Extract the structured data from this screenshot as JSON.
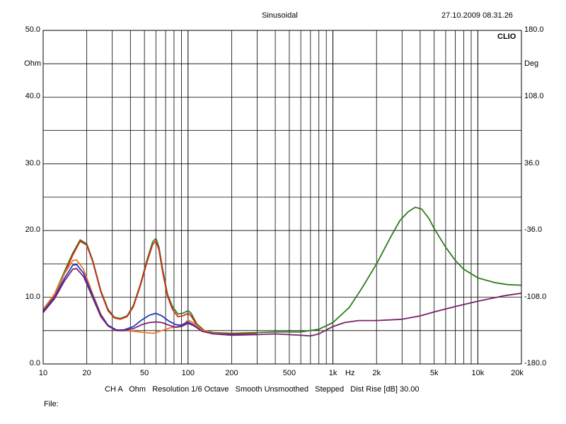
{
  "header": {
    "title": "Sinusoidal",
    "timestamp": "27.10.2009 08.31.26",
    "brand": "CLIO"
  },
  "footer": {
    "settings": "CH A   Ohm   Resolution 1/6 Octave   Smooth Unsmoothed   Stepped   Dist Rise [dB] 30.00",
    "file_label": "File:"
  },
  "chart_data": {
    "type": "line",
    "title": "Sinusoidal",
    "xlabel": "Hz",
    "ylabel_left": "Ohm",
    "ylabel_right": "Deg",
    "xscale": "log",
    "xlim": [
      10,
      20000
    ],
    "ylim": [
      0,
      50
    ],
    "ylim_right": [
      -180,
      180
    ],
    "grid": true,
    "x_ticks": [
      {
        "v": 10,
        "label": "10"
      },
      {
        "v": 20,
        "label": "20"
      },
      {
        "v": 50,
        "label": "50"
      },
      {
        "v": 100,
        "label": "100"
      },
      {
        "v": 200,
        "label": "200"
      },
      {
        "v": 500,
        "label": "500"
      },
      {
        "v": 1000,
        "label": "1k"
      },
      {
        "v": 2000,
        "label": "2k"
      },
      {
        "v": 5000,
        "label": "5k"
      },
      {
        "v": 10000,
        "label": "10k"
      },
      {
        "v": 20000,
        "label": "20k"
      }
    ],
    "y_ticks_left": [
      {
        "v": 50,
        "label": "50.0"
      },
      {
        "v": 40,
        "label": "40.0"
      },
      {
        "v": 30,
        "label": "30.0"
      },
      {
        "v": 20,
        "label": "20.0"
      },
      {
        "v": 10,
        "label": "10.0"
      },
      {
        "v": 0,
        "label": "0.0"
      }
    ],
    "y_ticks_right": [
      {
        "v": 50,
        "label": "180.0"
      },
      {
        "v": 40,
        "label": "108.0"
      },
      {
        "v": 30,
        "label": "36.0"
      },
      {
        "v": 20,
        "label": "-36.0"
      },
      {
        "v": 10,
        "label": "-108.0"
      },
      {
        "v": 0,
        "label": "-180.0"
      }
    ],
    "series": [
      {
        "color": "#2e7d1e",
        "points": [
          [
            10,
            8
          ],
          [
            12,
            10.5
          ],
          [
            14,
            13.8
          ],
          [
            16,
            16.6
          ],
          [
            18,
            18.6
          ],
          [
            20,
            18
          ],
          [
            22,
            15.5
          ],
          [
            25,
            11
          ],
          [
            28,
            8.2
          ],
          [
            31,
            7
          ],
          [
            34,
            6.8
          ],
          [
            38,
            7.2
          ],
          [
            42,
            8.8
          ],
          [
            47,
            12
          ],
          [
            52,
            15.5
          ],
          [
            57,
            18.3
          ],
          [
            60,
            18.8
          ],
          [
            63,
            17.5
          ],
          [
            67,
            14
          ],
          [
            72,
            10.5
          ],
          [
            78,
            8.6
          ],
          [
            85,
            7.5
          ],
          [
            92,
            7.6
          ],
          [
            100,
            8
          ],
          [
            105,
            7.6
          ],
          [
            115,
            6
          ],
          [
            130,
            5
          ],
          [
            150,
            4.7
          ],
          [
            200,
            4.6
          ],
          [
            300,
            4.7
          ],
          [
            400,
            4.8
          ],
          [
            600,
            4.8
          ],
          [
            800,
            5.2
          ],
          [
            1000,
            6.2
          ],
          [
            1300,
            8.5
          ],
          [
            1600,
            11.5
          ],
          [
            2000,
            15
          ],
          [
            2500,
            19
          ],
          [
            2900,
            21.5
          ],
          [
            3300,
            22.8
          ],
          [
            3700,
            23.5
          ],
          [
            4100,
            23.2
          ],
          [
            4600,
            21.8
          ],
          [
            5000,
            20.3
          ],
          [
            6000,
            17.5
          ],
          [
            7000,
            15.5
          ],
          [
            8000,
            14.2
          ],
          [
            10000,
            12.9
          ],
          [
            13000,
            12.2
          ],
          [
            16000,
            11.9
          ],
          [
            20000,
            11.8
          ]
        ]
      },
      {
        "color": "#d42a1a",
        "points": [
          [
            10,
            7.8
          ],
          [
            12,
            10.2
          ],
          [
            14,
            13.5
          ],
          [
            16,
            16.3
          ],
          [
            18,
            18.4
          ],
          [
            20,
            17.8
          ],
          [
            22,
            15.3
          ],
          [
            25,
            10.8
          ],
          [
            28,
            8
          ],
          [
            31,
            6.9
          ],
          [
            34,
            6.7
          ],
          [
            38,
            7.1
          ],
          [
            42,
            8.6
          ],
          [
            47,
            11.8
          ],
          [
            52,
            15.2
          ],
          [
            57,
            17.9
          ],
          [
            60,
            18.4
          ],
          [
            63,
            17.1
          ],
          [
            67,
            13.6
          ],
          [
            72,
            10.2
          ],
          [
            78,
            8.2
          ],
          [
            85,
            7.1
          ],
          [
            92,
            7.2
          ],
          [
            100,
            7.6
          ],
          [
            105,
            7.2
          ],
          [
            115,
            5.8
          ],
          [
            130,
            4.9
          ],
          [
            150,
            4.6
          ],
          [
            200,
            4.5
          ],
          [
            300,
            4.5
          ]
        ]
      },
      {
        "color": "#f07820",
        "points": [
          [
            10,
            8.2
          ],
          [
            12,
            10.5
          ],
          [
            14,
            13.5
          ],
          [
            16,
            15.5
          ],
          [
            17,
            15.6
          ],
          [
            19,
            14.2
          ],
          [
            22,
            10.5
          ],
          [
            25,
            7.5
          ],
          [
            28,
            5.8
          ],
          [
            32,
            5.1
          ],
          [
            36,
            5
          ],
          [
            42,
            4.9
          ],
          [
            50,
            4.7
          ],
          [
            58,
            4.6
          ],
          [
            66,
            5
          ],
          [
            75,
            5.4
          ],
          [
            85,
            5.6
          ],
          [
            95,
            6.1
          ],
          [
            100,
            6.6
          ],
          [
            110,
            6.1
          ],
          [
            125,
            5.1
          ],
          [
            150,
            4.6
          ],
          [
            200,
            4.4
          ],
          [
            300,
            4.4
          ]
        ]
      },
      {
        "color": "#1c3cc8",
        "points": [
          [
            10,
            7.9
          ],
          [
            12,
            10
          ],
          [
            14,
            12.8
          ],
          [
            16,
            14.8
          ],
          [
            17,
            14.9
          ],
          [
            19,
            13.6
          ],
          [
            22,
            10.2
          ],
          [
            25,
            7.3
          ],
          [
            28,
            5.8
          ],
          [
            32,
            5.1
          ],
          [
            36,
            5.1
          ],
          [
            42,
            5.6
          ],
          [
            48,
            6.6
          ],
          [
            54,
            7.3
          ],
          [
            60,
            7.6
          ],
          [
            66,
            7.2
          ],
          [
            74,
            6.4
          ],
          [
            82,
            5.9
          ],
          [
            90,
            5.8
          ],
          [
            100,
            6.3
          ],
          [
            110,
            5.8
          ],
          [
            125,
            4.9
          ],
          [
            150,
            4.5
          ],
          [
            200,
            4.4
          ],
          [
            300,
            4.4
          ]
        ]
      },
      {
        "color": "#7a1f6e",
        "points": [
          [
            10,
            7.7
          ],
          [
            12,
            9.8
          ],
          [
            14,
            12.4
          ],
          [
            16,
            14.2
          ],
          [
            17,
            14.3
          ],
          [
            19,
            13.1
          ],
          [
            22,
            9.9
          ],
          [
            25,
            7.1
          ],
          [
            28,
            5.7
          ],
          [
            32,
            5
          ],
          [
            36,
            5
          ],
          [
            42,
            5.3
          ],
          [
            48,
            5.9
          ],
          [
            54,
            6.2
          ],
          [
            60,
            6.3
          ],
          [
            66,
            6.2
          ],
          [
            74,
            5.8
          ],
          [
            82,
            5.5
          ],
          [
            90,
            5.6
          ],
          [
            100,
            6.1
          ],
          [
            110,
            5.7
          ],
          [
            125,
            4.9
          ],
          [
            150,
            4.5
          ],
          [
            200,
            4.3
          ],
          [
            300,
            4.4
          ],
          [
            400,
            4.5
          ],
          [
            500,
            4.4
          ],
          [
            600,
            4.3
          ],
          [
            700,
            4.2
          ],
          [
            800,
            4.5
          ],
          [
            900,
            5.1
          ],
          [
            1000,
            5.6
          ],
          [
            1200,
            6.2
          ],
          [
            1500,
            6.5
          ],
          [
            2000,
            6.5
          ],
          [
            3000,
            6.7
          ],
          [
            4000,
            7.2
          ],
          [
            5000,
            7.8
          ],
          [
            7000,
            8.6
          ],
          [
            10000,
            9.4
          ],
          [
            15000,
            10.2
          ],
          [
            20000,
            10.6
          ]
        ]
      }
    ]
  }
}
